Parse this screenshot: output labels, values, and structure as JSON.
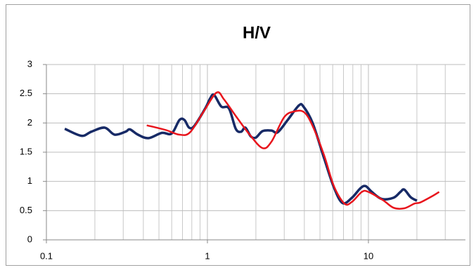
{
  "chart_data": {
    "type": "line",
    "title": "H/V",
    "xlog": true,
    "xlim": [
      0.1,
      40
    ],
    "xticks": [
      0.1,
      1,
      10
    ],
    "xminorticks": [
      0.2,
      0.3,
      0.4,
      0.5,
      0.6,
      0.7,
      0.8,
      0.9,
      2,
      3,
      4,
      5,
      6,
      7,
      8,
      9,
      20,
      30
    ],
    "ylim": [
      0,
      3
    ],
    "yticks": [
      0,
      0.5,
      1,
      1.5,
      2,
      2.5,
      3
    ],
    "grid": true,
    "series": [
      {
        "color": "#172a66",
        "x": [
          0.13,
          0.165,
          0.19,
          0.23,
          0.265,
          0.31,
          0.33,
          0.37,
          0.43,
          0.52,
          0.6,
          0.67,
          0.72,
          0.77,
          0.83,
          0.97,
          1.04,
          1.1,
          1.22,
          1.36,
          1.5,
          1.62,
          1.72,
          1.86,
          2.0,
          2.2,
          2.5,
          2.73,
          3.15,
          3.7,
          3.95,
          4.5,
          5.3,
          6.1,
          6.9,
          7.9,
          8.9,
          9.6,
          10.5,
          12.1,
          14.3,
          15.8,
          16.7,
          18.3,
          20
        ],
        "values": [
          1.9,
          1.78,
          1.85,
          1.92,
          1.8,
          1.85,
          1.89,
          1.8,
          1.74,
          1.83,
          1.82,
          2.05,
          2.05,
          1.92,
          1.95,
          2.25,
          2.42,
          2.48,
          2.28,
          2.25,
          1.9,
          1.85,
          1.92,
          1.77,
          1.75,
          1.86,
          1.87,
          1.84,
          2.05,
          2.3,
          2.28,
          2.0,
          1.4,
          0.9,
          0.63,
          0.72,
          0.88,
          0.92,
          0.82,
          0.7,
          0.72,
          0.82,
          0.86,
          0.73,
          0.67
        ]
      },
      {
        "color": "#e8141c",
        "x": [
          0.42,
          0.55,
          0.67,
          0.78,
          0.95,
          1.14,
          1.27,
          1.5,
          1.83,
          2.2,
          2.5,
          3.0,
          3.5,
          4.0,
          4.5,
          5.3,
          6.1,
          7.1,
          7.9,
          9.1,
          10,
          12.3,
          14.3,
          16.7,
          19.3,
          21,
          25,
          27.5
        ],
        "values": [
          1.96,
          1.88,
          1.8,
          1.84,
          2.2,
          2.52,
          2.4,
          2.12,
          1.8,
          1.57,
          1.68,
          2.1,
          2.2,
          2.18,
          1.95,
          1.45,
          0.92,
          0.62,
          0.65,
          0.82,
          0.82,
          0.68,
          0.55,
          0.54,
          0.62,
          0.64,
          0.75,
          0.82
        ]
      }
    ]
  }
}
